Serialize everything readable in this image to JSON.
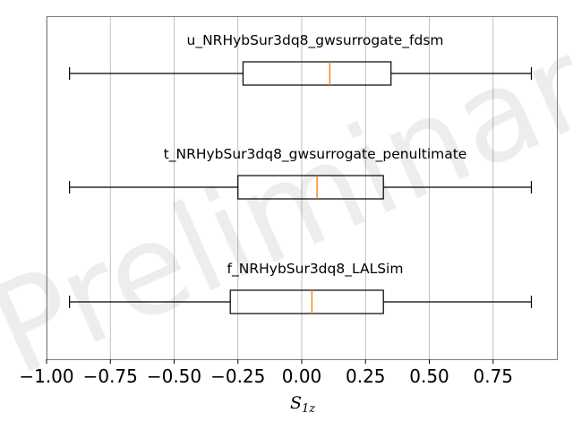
{
  "chart_data": {
    "type": "boxplot",
    "orientation": "horizontal",
    "xlabel_main": "S",
    "xlabel_sub": "1z",
    "xlim": [
      -1.0,
      1.0
    ],
    "xticks": [
      -1.0,
      -0.75,
      -0.5,
      -0.25,
      0.0,
      0.25,
      0.5,
      0.75
    ],
    "xtick_labels": [
      "−1.00",
      "−0.75",
      "−0.50",
      "−0.25",
      "0.00",
      "0.25",
      "0.50",
      "0.75"
    ],
    "grid": "x",
    "watermark": "Preliminary",
    "colors": {
      "box": "#000000",
      "median": "#ff7f0e",
      "grid": "#b0b0b0",
      "frame": "#808080"
    },
    "series": [
      {
        "label": "u_NRHybSur3dq8_gwsurrogate_fdsm",
        "whisker_low": -0.91,
        "q1": -0.23,
        "median": 0.11,
        "q3": 0.35,
        "whisker_high": 0.9
      },
      {
        "label": "t_NRHybSur3dq8_gwsurrogate_penultimate",
        "whisker_low": -0.91,
        "q1": -0.25,
        "median": 0.06,
        "q3": 0.32,
        "whisker_high": 0.9
      },
      {
        "label": "f_NRHybSur3dq8_LALSim",
        "whisker_low": -0.91,
        "q1": -0.28,
        "median": 0.04,
        "q3": 0.32,
        "whisker_high": 0.9
      }
    ]
  }
}
